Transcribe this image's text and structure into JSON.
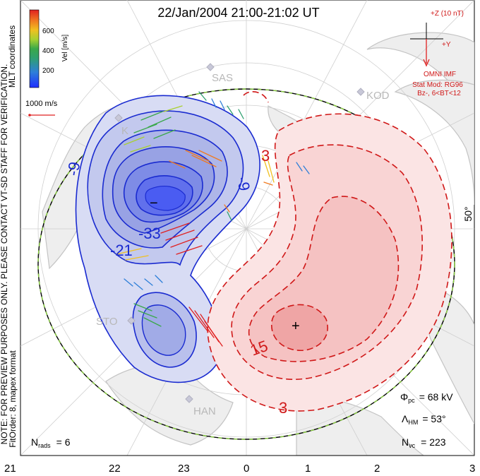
{
  "title": "22/Jan/2004 21:00-21:02 UT",
  "imf": {
    "z_label": "+Z (10 nT)",
    "y_label": "+Y",
    "source": "OMNI IMF",
    "stat_mod": "Stat Mod: RG96",
    "condition": "Bz-, 6<BT<12"
  },
  "velocity_legend": {
    "unit_label": "Vel [m/s]",
    "ticks": [
      "600",
      "400",
      "200"
    ],
    "scale_label": "1000 m/s",
    "colors": [
      "#1f2fff",
      "#2e7fd8",
      "#3aa84a",
      "#a8d030",
      "#f0c020",
      "#f07a20",
      "#e02020"
    ]
  },
  "side_notes": {
    "coords": "MLT coordinates",
    "note": "NOTE: FOR PREVIEW PURPOSES ONLY. PLEASE CONTACT VT-SD STAFF FOR VERIFICATION.",
    "fit": "FitOrder: 8, mapex format"
  },
  "latitude_label": "50°",
  "stations": [
    "SAS",
    "KOD",
    "K",
    "STO",
    "HAN"
  ],
  "contours": {
    "negative_labels": [
      "-9",
      "-33",
      "-21",
      "-9"
    ],
    "positive_labels": [
      "3",
      "15",
      "3"
    ],
    "min_marker": "−",
    "max_marker": "+"
  },
  "stats": {
    "phi_pc": {
      "symbol": "Φ",
      "sub": "pc",
      "value": "= 68 kV"
    },
    "lambda_hm": {
      "symbol": "Λ",
      "sub": "HM",
      "value": "= 53°"
    },
    "n_vc": {
      "symbol": "N",
      "sub": "vc",
      "value": "= 223"
    },
    "n_rads": {
      "symbol": "N",
      "sub": "rads",
      "value": "= 6"
    }
  },
  "x_axis_ticks": [
    "21",
    "22",
    "23",
    "0",
    "1",
    "2",
    "3"
  ],
  "colors": {
    "negative": "#1a2bd0",
    "positive": "#d01818",
    "boundary": "#8ad040",
    "land": "#c8c8c8"
  }
}
